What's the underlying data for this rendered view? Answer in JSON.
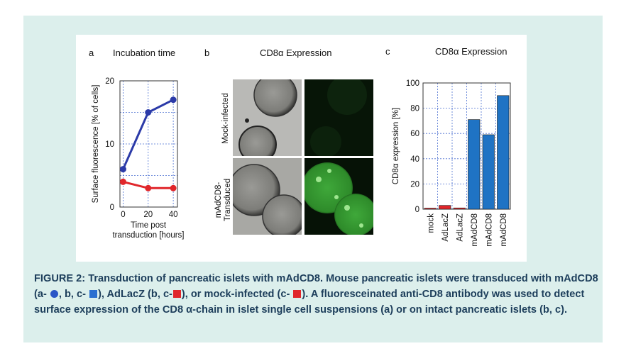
{
  "panel_a": {
    "letter": "a",
    "title": "Incubation time",
    "ylabel": "Surface fluorescence [% of cells]",
    "xlabel_line1": "Time post",
    "xlabel_line2": "transduction [hours]",
    "colors": {
      "mAdCD8": "#2b3aa8",
      "mock": "#e0262b"
    }
  },
  "panel_b": {
    "letter": "b",
    "title": "CD8α Expression",
    "row1_label": "Mock-infected",
    "row2_label_line1": "mAdCD8-",
    "row2_label_line2": "Transduced"
  },
  "panel_c": {
    "letter": "c",
    "title": "CD8α Expression",
    "ylabel": "CD8α expression [%]"
  },
  "caption": {
    "prefix": "FIGURE 2:",
    "t1": " Transduction of pancreatic islets with mAdCD8. Mouse pancreatic islets were transduced with mAdCD8 (a- ",
    "t2": ", b, c- ",
    "t3": "), AdLacZ (b, c-",
    "t4": "), or mock-infected (c- ",
    "t5": "). A fluoresceinated anti-CD8 antibody was used to detect surface expression of the CD8 α-chain in islet single cell suspensions (a) or on intact pancreatic islets (b, c)."
  },
  "chart_data": [
    {
      "type": "line",
      "title": "Incubation time",
      "xlabel": "Time post transduction [hours]",
      "ylabel": "Surface fluorescence [% of cells]",
      "x": [
        0,
        24,
        48
      ],
      "xticks": [
        "0",
        "20",
        "40"
      ],
      "yticks": [
        "0",
        "10",
        "20"
      ],
      "xlim": [
        -3,
        52
      ],
      "ylim": [
        0,
        20
      ],
      "grid": true,
      "series": [
        {
          "values": [
            6,
            15,
            17
          ],
          "color": "#2b3aa8"
        },
        {
          "values": [
            4,
            3,
            3
          ],
          "color": "#e0262b"
        }
      ]
    },
    {
      "type": "bar",
      "title": "CD8α Expression",
      "ylabel": "CD8α expression [%]",
      "categories": [
        "mock",
        "AdLacZ",
        "AdLacZ",
        "mAdCD8",
        "mAdCD8",
        "mAdCD8"
      ],
      "values": [
        0.5,
        3,
        1,
        71,
        59,
        90
      ],
      "bar_colors": [
        "#e0262b",
        "#e0262b",
        "#e0262b",
        "#1f73c4",
        "#1f73c4",
        "#1f73c4"
      ],
      "yticks": [
        "0",
        "20",
        "40",
        "60",
        "80",
        "100"
      ],
      "ylim": [
        0,
        100
      ],
      "grid": true
    }
  ]
}
